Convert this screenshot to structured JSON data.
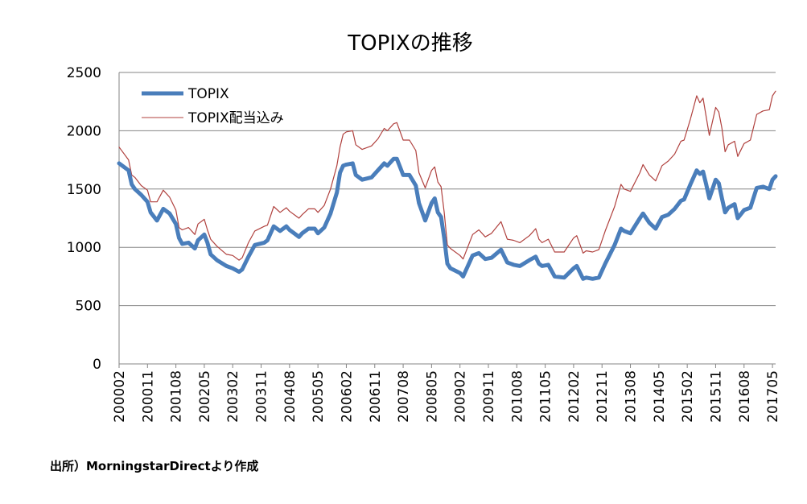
{
  "source_note": "出所）MorningstarDirectより作成",
  "chart_data": {
    "type": "line",
    "title": "TOPIXの推移",
    "xlabel": "",
    "ylabel": "",
    "ylim": [
      0,
      2500
    ],
    "yticks": [
      0,
      500,
      1000,
      1500,
      2000,
      2500
    ],
    "grid": true,
    "legend_position": "top-left",
    "x_tick_labels": [
      "200002",
      "200011",
      "200108",
      "200205",
      "200302",
      "200311",
      "200408",
      "200505",
      "200602",
      "200611",
      "200708",
      "200805",
      "200902",
      "200911",
      "201008",
      "201105",
      "201202",
      "201211",
      "201308",
      "201405",
      "201502",
      "201511",
      "201608",
      "201705"
    ],
    "x_start": "200002",
    "x_end": "201706",
    "colors": {
      "topix": "#4a7ebb",
      "topix_div": "#b0413e",
      "grid": "#868686"
    },
    "series": [
      {
        "name": "TOPIX",
        "anchors": [
          [
            "200002",
            1720
          ],
          [
            "200005",
            1660
          ],
          [
            "200006",
            1540
          ],
          [
            "200007",
            1500
          ],
          [
            "200009",
            1450
          ],
          [
            "200011",
            1390
          ],
          [
            "200012",
            1300
          ],
          [
            "200102",
            1230
          ],
          [
            "200104",
            1330
          ],
          [
            "200106",
            1290
          ],
          [
            "200108",
            1200
          ],
          [
            "200109",
            1080
          ],
          [
            "200110",
            1030
          ],
          [
            "200112",
            1040
          ],
          [
            "200202",
            990
          ],
          [
            "200203",
            1060
          ],
          [
            "200205",
            1110
          ],
          [
            "200206",
            1040
          ],
          [
            "200207",
            940
          ],
          [
            "200209",
            890
          ],
          [
            "200212",
            840
          ],
          [
            "200302",
            820
          ],
          [
            "200304",
            790
          ],
          [
            "200305",
            810
          ],
          [
            "200307",
            920
          ],
          [
            "200309",
            1020
          ],
          [
            "200312",
            1040
          ],
          [
            "200401",
            1060
          ],
          [
            "200403",
            1180
          ],
          [
            "200405",
            1140
          ],
          [
            "200407",
            1180
          ],
          [
            "200408",
            1150
          ],
          [
            "200410",
            1110
          ],
          [
            "200411",
            1090
          ],
          [
            "200412",
            1120
          ],
          [
            "200502",
            1160
          ],
          [
            "200504",
            1160
          ],
          [
            "200505",
            1120
          ],
          [
            "200507",
            1170
          ],
          [
            "200509",
            1290
          ],
          [
            "200511",
            1470
          ],
          [
            "200512",
            1640
          ],
          [
            "200601",
            1700
          ],
          [
            "200602",
            1710
          ],
          [
            "200604",
            1720
          ],
          [
            "200605",
            1620
          ],
          [
            "200607",
            1580
          ],
          [
            "200610",
            1600
          ],
          [
            "200612",
            1660
          ],
          [
            "200702",
            1720
          ],
          [
            "200703",
            1700
          ],
          [
            "200705",
            1760
          ],
          [
            "200706",
            1760
          ],
          [
            "200708",
            1620
          ],
          [
            "200710",
            1620
          ],
          [
            "200712",
            1530
          ],
          [
            "200801",
            1380
          ],
          [
            "200803",
            1230
          ],
          [
            "200805",
            1380
          ],
          [
            "200806",
            1420
          ],
          [
            "200807",
            1300
          ],
          [
            "200808",
            1260
          ],
          [
            "200809",
            1080
          ],
          [
            "200810",
            860
          ],
          [
            "200811",
            820
          ],
          [
            "200902",
            780
          ],
          [
            "200903",
            750
          ],
          [
            "200906",
            930
          ],
          [
            "200908",
            950
          ],
          [
            "200910",
            900
          ],
          [
            "200912",
            910
          ],
          [
            "201003",
            980
          ],
          [
            "201005",
            870
          ],
          [
            "201007",
            850
          ],
          [
            "201009",
            840
          ],
          [
            "201012",
            890
          ],
          [
            "201102",
            920
          ],
          [
            "201103",
            860
          ],
          [
            "201104",
            840
          ],
          [
            "201106",
            850
          ],
          [
            "201108",
            750
          ],
          [
            "201111",
            740
          ],
          [
            "201202",
            820
          ],
          [
            "201203",
            840
          ],
          [
            "201205",
            730
          ],
          [
            "201206",
            740
          ],
          [
            "201208",
            730
          ],
          [
            "201210",
            740
          ],
          [
            "201212",
            860
          ],
          [
            "201303",
            1020
          ],
          [
            "201305",
            1160
          ],
          [
            "201306",
            1140
          ],
          [
            "201308",
            1120
          ],
          [
            "201311",
            1250
          ],
          [
            "201312",
            1290
          ],
          [
            "201402",
            1210
          ],
          [
            "201404",
            1160
          ],
          [
            "201406",
            1260
          ],
          [
            "201408",
            1280
          ],
          [
            "201410",
            1330
          ],
          [
            "201412",
            1400
          ],
          [
            "201501",
            1410
          ],
          [
            "201503",
            1540
          ],
          [
            "201505",
            1660
          ],
          [
            "201506",
            1630
          ],
          [
            "201507",
            1650
          ],
          [
            "201508",
            1540
          ],
          [
            "201509",
            1420
          ],
          [
            "201511",
            1580
          ],
          [
            "201512",
            1550
          ],
          [
            "201601",
            1420
          ],
          [
            "201602",
            1300
          ],
          [
            "201603",
            1340
          ],
          [
            "201605",
            1370
          ],
          [
            "201606",
            1250
          ],
          [
            "201608",
            1320
          ],
          [
            "201610",
            1340
          ],
          [
            "201612",
            1510
          ],
          [
            "201702",
            1520
          ],
          [
            "201704",
            1500
          ],
          [
            "201705",
            1580
          ],
          [
            "201706",
            1610
          ]
        ]
      },
      {
        "name": "TOPIX配当込み",
        "anchors": [
          [
            "200002",
            1860
          ],
          [
            "200005",
            1750
          ],
          [
            "200006",
            1620
          ],
          [
            "200007",
            1600
          ],
          [
            "200009",
            1530
          ],
          [
            "200011",
            1490
          ],
          [
            "200012",
            1390
          ],
          [
            "200102",
            1390
          ],
          [
            "200104",
            1490
          ],
          [
            "200106",
            1430
          ],
          [
            "200108",
            1320
          ],
          [
            "200109",
            1170
          ],
          [
            "200110",
            1150
          ],
          [
            "200112",
            1170
          ],
          [
            "200202",
            1110
          ],
          [
            "200203",
            1200
          ],
          [
            "200205",
            1240
          ],
          [
            "200206",
            1150
          ],
          [
            "200207",
            1070
          ],
          [
            "200209",
            1010
          ],
          [
            "200212",
            940
          ],
          [
            "200302",
            930
          ],
          [
            "200304",
            890
          ],
          [
            "200305",
            910
          ],
          [
            "200307",
            1040
          ],
          [
            "200309",
            1140
          ],
          [
            "200312",
            1180
          ],
          [
            "200401",
            1190
          ],
          [
            "200403",
            1350
          ],
          [
            "200405",
            1300
          ],
          [
            "200407",
            1340
          ],
          [
            "200408",
            1310
          ],
          [
            "200410",
            1270
          ],
          [
            "200411",
            1250
          ],
          [
            "200412",
            1280
          ],
          [
            "200502",
            1330
          ],
          [
            "200504",
            1330
          ],
          [
            "200505",
            1300
          ],
          [
            "200507",
            1360
          ],
          [
            "200509",
            1500
          ],
          [
            "200511",
            1700
          ],
          [
            "200512",
            1860
          ],
          [
            "200601",
            1970
          ],
          [
            "200602",
            1990
          ],
          [
            "200604",
            2000
          ],
          [
            "200605",
            1880
          ],
          [
            "200607",
            1840
          ],
          [
            "200610",
            1870
          ],
          [
            "200612",
            1930
          ],
          [
            "200702",
            2020
          ],
          [
            "200703",
            2000
          ],
          [
            "200705",
            2060
          ],
          [
            "200706",
            2070
          ],
          [
            "200708",
            1920
          ],
          [
            "200710",
            1920
          ],
          [
            "200712",
            1830
          ],
          [
            "200801",
            1640
          ],
          [
            "200803",
            1510
          ],
          [
            "200805",
            1660
          ],
          [
            "200806",
            1690
          ],
          [
            "200807",
            1560
          ],
          [
            "200808",
            1520
          ],
          [
            "200809",
            1300
          ],
          [
            "200810",
            1020
          ],
          [
            "200811",
            990
          ],
          [
            "200902",
            930
          ],
          [
            "200903",
            900
          ],
          [
            "200906",
            1110
          ],
          [
            "200908",
            1150
          ],
          [
            "200910",
            1090
          ],
          [
            "200912",
            1120
          ],
          [
            "201003",
            1220
          ],
          [
            "201005",
            1070
          ],
          [
            "201007",
            1060
          ],
          [
            "201009",
            1040
          ],
          [
            "201012",
            1100
          ],
          [
            "201102",
            1160
          ],
          [
            "201103",
            1070
          ],
          [
            "201104",
            1040
          ],
          [
            "201106",
            1070
          ],
          [
            "201108",
            960
          ],
          [
            "201111",
            960
          ],
          [
            "201202",
            1080
          ],
          [
            "201203",
            1100
          ],
          [
            "201205",
            950
          ],
          [
            "201206",
            970
          ],
          [
            "201208",
            960
          ],
          [
            "201210",
            980
          ],
          [
            "201212",
            1140
          ],
          [
            "201303",
            1350
          ],
          [
            "201305",
            1540
          ],
          [
            "201306",
            1500
          ],
          [
            "201308",
            1480
          ],
          [
            "201311",
            1640
          ],
          [
            "201312",
            1710
          ],
          [
            "201402",
            1620
          ],
          [
            "201404",
            1570
          ],
          [
            "201406",
            1700
          ],
          [
            "201408",
            1740
          ],
          [
            "201410",
            1800
          ],
          [
            "201412",
            1910
          ],
          [
            "201501",
            1920
          ],
          [
            "201503",
            2100
          ],
          [
            "201505",
            2300
          ],
          [
            "201506",
            2240
          ],
          [
            "201507",
            2280
          ],
          [
            "201508",
            2120
          ],
          [
            "201509",
            1960
          ],
          [
            "201511",
            2200
          ],
          [
            "201512",
            2160
          ],
          [
            "201601",
            2020
          ],
          [
            "201602",
            1820
          ],
          [
            "201603",
            1880
          ],
          [
            "201605",
            1910
          ],
          [
            "201606",
            1780
          ],
          [
            "201608",
            1890
          ],
          [
            "201610",
            1920
          ],
          [
            "201612",
            2140
          ],
          [
            "201702",
            2170
          ],
          [
            "201704",
            2180
          ],
          [
            "201705",
            2300
          ],
          [
            "201706",
            2340
          ]
        ]
      }
    ]
  }
}
